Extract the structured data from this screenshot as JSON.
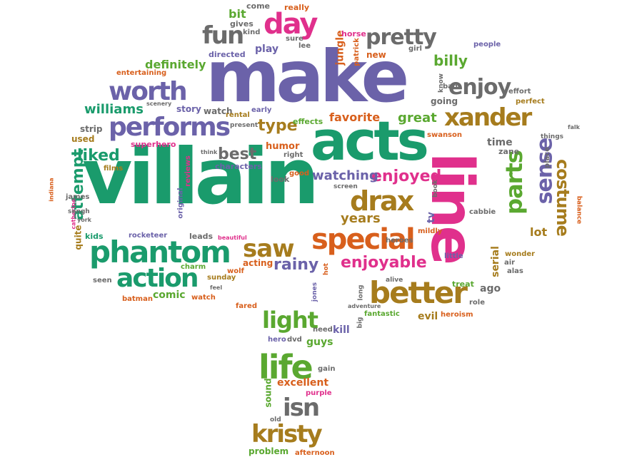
{
  "palette": {
    "purple": "#6b62a9",
    "green": "#1a9b6c",
    "lime": "#5aa830",
    "orange": "#d85f1c",
    "pink": "#e0308c",
    "brown": "#a67c1d",
    "gray": "#6b6b6b"
  },
  "words": [
    "villain",
    "make",
    "acts",
    "line",
    "phantom",
    "action",
    "performs",
    "worth",
    "fun",
    "day",
    "pretty",
    "enjoy",
    "xander",
    "drax",
    "special",
    "saw",
    "better",
    "life",
    "light",
    "kristy",
    "isn",
    "parts",
    "sense",
    "costume",
    "enjoyable",
    "rainy",
    "enjoyed",
    "watching",
    "years",
    "best",
    "liked",
    "attempt",
    "type",
    "williams",
    "definitely",
    "great",
    "favorite",
    "billy",
    "jungle",
    "bit",
    "come",
    "really",
    "gives",
    "kind",
    "play",
    "horse",
    "sure",
    "lee",
    "girl",
    "people",
    "patrick",
    "new",
    "directed",
    "entertaining",
    "know",
    "effort",
    "perfect",
    "bad",
    "going",
    "story",
    "scenery",
    "watch",
    "rental",
    "early",
    "effects",
    "time",
    "swanson",
    "strip",
    "used",
    "superhero",
    "think",
    "humor",
    "right",
    "characters",
    "look",
    "good",
    "films",
    "reviews",
    "original",
    "zane",
    "things",
    "falk",
    "place",
    "indiana",
    "james",
    "catherine",
    "sengh",
    "york",
    "quite",
    "kids",
    "rocketeer",
    "leads",
    "beautiful",
    "heroes",
    "cabbie",
    "mildly",
    "lot",
    "balance",
    "little",
    "wonder",
    "air",
    "alas",
    "serial",
    "treat",
    "ago",
    "role",
    "evil",
    "heroism",
    "charm",
    "sunday",
    "wolf",
    "acting",
    "hot",
    "alive",
    "long",
    "seen",
    "batman",
    "comic",
    "feel",
    "fared",
    "jones",
    "present",
    "tv",
    "book",
    "screen",
    "adventure",
    "fantastic",
    "big",
    "need",
    "kill",
    "hero",
    "dvd",
    "guys",
    "gain",
    "excellent",
    "sound",
    "purple",
    "old",
    "problem",
    "afternoon"
  ]
}
